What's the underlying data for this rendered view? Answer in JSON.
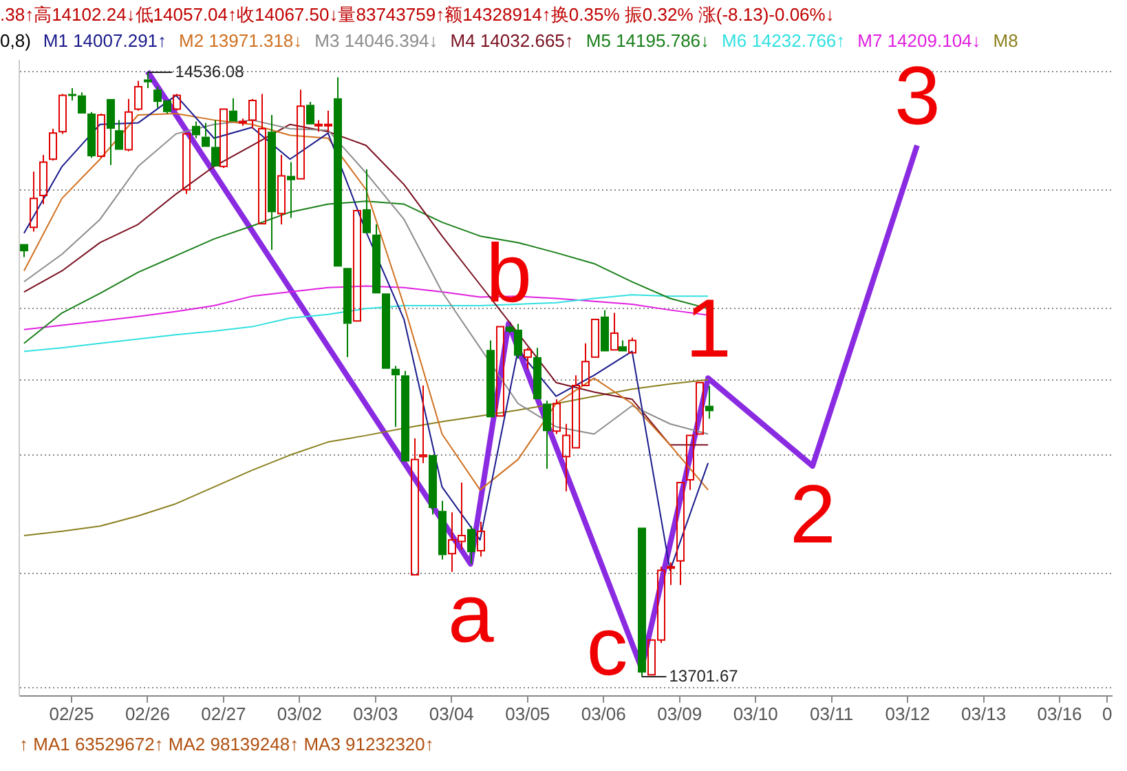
{
  "chart_data": {
    "type": "candlestick",
    "categories": [
      null,
      null,
      null,
      null,
      null,
      "02/25",
      null,
      null,
      null,
      null,
      null,
      null,
      null,
      "02/26",
      null,
      null,
      null,
      null,
      null,
      null,
      null,
      "02/27",
      null,
      null,
      null,
      null,
      null,
      null,
      null,
      "03/02",
      null,
      null,
      null,
      null,
      null,
      null,
      null,
      "03/03",
      null,
      null,
      null,
      null,
      null,
      null,
      null,
      "03/04",
      null,
      null,
      null,
      null,
      null,
      null,
      null,
      "03/05",
      null,
      null,
      null,
      null,
      null,
      null,
      null,
      "03/06",
      null,
      null,
      null,
      null,
      null,
      null,
      null,
      "03/09",
      null,
      null,
      null,
      null,
      null,
      null,
      null,
      "03/10",
      null,
      null,
      null,
      null,
      null,
      null,
      null,
      "03/11",
      null,
      null,
      null,
      null,
      null,
      null,
      null,
      "03/12",
      null,
      null,
      null,
      null,
      null,
      null,
      null,
      "03/13",
      null,
      null,
      null,
      null,
      null,
      null,
      null,
      "03/16",
      null,
      null,
      null,
      null,
      "0"
    ],
    "ohlc": [
      [
        14298,
        14298,
        14280,
        14288
      ],
      [
        14321,
        14398,
        14315,
        14361
      ],
      [
        14365,
        14421,
        14353,
        14411
      ],
      [
        14415,
        14457,
        14413,
        14451
      ],
      [
        14453,
        14505,
        14450,
        14503
      ],
      [
        14505,
        14513,
        14496,
        14503
      ],
      [
        14503,
        14507,
        14478,
        14478
      ],
      [
        14478,
        14480,
        14417,
        14419
      ],
      [
        14419,
        14478,
        14417,
        14476
      ],
      [
        14498,
        14498,
        14407,
        14457
      ],
      [
        14455,
        14469,
        14428,
        14428
      ],
      [
        14428,
        14498,
        14426,
        14480
      ],
      [
        14484,
        14523,
        14482,
        14515
      ],
      [
        14525,
        14536.08,
        14513,
        14521
      ],
      [
        14511,
        14515,
        14486,
        14494
      ],
      [
        14496,
        14496,
        14478,
        14480
      ],
      [
        14484,
        14505,
        14482,
        14503
      ],
      [
        14373,
        14451,
        14367,
        14450
      ],
      [
        14461,
        14467,
        14444,
        14448
      ],
      [
        14446,
        14465,
        14432,
        14432
      ],
      [
        14432,
        14469,
        14405,
        14405
      ],
      [
        14405,
        14484,
        14403,
        14484
      ],
      [
        14482,
        14499,
        14467,
        14467
      ],
      [
        14465,
        14471,
        14461,
        14467
      ],
      [
        14469,
        14498,
        14457,
        14496
      ],
      [
        14326,
        14505,
        14326,
        14457
      ],
      [
        14453,
        14476,
        14290,
        14342
      ],
      [
        14340,
        14421,
        14325,
        14392
      ],
      [
        14392,
        14411,
        14334,
        14386
      ],
      [
        14388,
        14511,
        14388,
        14488
      ],
      [
        14490,
        14494,
        14463,
        14463
      ],
      [
        14461,
        14469,
        14453,
        14463
      ],
      [
        14461,
        14482,
        14453,
        14463
      ],
      [
        14499,
        14528,
        14267,
        14267
      ],
      [
        14265,
        14265,
        14142,
        14188
      ],
      [
        14192,
        14344,
        14192,
        14344
      ],
      [
        14346,
        14401,
        14313,
        14313
      ],
      [
        14311,
        14325,
        14230,
        14230
      ],
      [
        14230,
        14230,
        14126,
        14126
      ],
      [
        14126,
        14130,
        14046,
        14117
      ],
      [
        14117,
        14123,
        13998,
        13998
      ],
      [
        13842,
        14030,
        13842,
        14001
      ],
      [
        14005,
        14103,
        13996,
        14007
      ],
      [
        14007,
        14007,
        13925,
        13934
      ],
      [
        13930,
        13944,
        13863,
        13869
      ],
      [
        13871,
        13928,
        13846,
        13890
      ],
      [
        13888,
        13969,
        13877,
        13896
      ],
      [
        13905,
        13909,
        13857,
        13873
      ],
      [
        13875,
        13915,
        13867,
        13902
      ],
      [
        14152,
        14165,
        14059,
        14059
      ],
      [
        14061,
        14184,
        14061,
        14184
      ],
      [
        14184,
        14186,
        14175,
        14177
      ],
      [
        14180,
        14188,
        14140,
        14144
      ],
      [
        14142,
        14155,
        14126,
        14152
      ],
      [
        14142,
        14155,
        14084,
        14084
      ],
      [
        14078,
        14082,
        13988,
        14040
      ],
      [
        14040,
        14084,
        14036,
        14078
      ],
      [
        14005,
        14050,
        13957,
        14034
      ],
      [
        14017,
        14117,
        14017,
        14103
      ],
      [
        14103,
        14161,
        14103,
        14136
      ],
      [
        14142,
        14194,
        14142,
        14194
      ],
      [
        14198,
        14207,
        14150,
        14150
      ],
      [
        14152,
        14203,
        14152,
        14175
      ],
      [
        14157,
        14165,
        14150,
        14150
      ],
      [
        14148,
        14169,
        14148,
        14165
      ],
      [
        13907,
        13907,
        13701.67,
        13707
      ],
      [
        13704,
        13752,
        13704,
        13752
      ],
      [
        13752,
        13853,
        13748,
        13848
      ],
      [
        13852,
        13859,
        13828,
        13853
      ],
      [
        13861,
        13969,
        13828,
        13969
      ],
      [
        13973,
        14034,
        13959,
        14034
      ],
      [
        14036,
        14107,
        14036,
        14107
      ],
      [
        14075,
        14102.24,
        14057.04,
        14067.5
      ],
      null,
      null,
      null,
      null,
      null,
      null,
      null,
      null,
      null,
      null,
      null,
      null,
      null,
      null,
      null,
      null,
      null,
      null,
      null,
      null,
      null,
      null,
      null,
      null,
      null,
      null,
      null,
      null,
      null,
      null,
      null,
      null,
      null,
      null,
      null,
      null,
      null,
      null,
      null,
      null,
      null,
      null
    ],
    "colors": [
      "#008000",
      "#e00000",
      "#e00000",
      "#e00000",
      "#e00000",
      "#008000",
      "#008000",
      "#008000",
      "#e00000",
      "#008000",
      "#008000",
      "#e00000",
      "#e00000",
      "#008000",
      "#008000",
      "#008000",
      "#e00000",
      "#e00000",
      "#008000",
      "#008000",
      "#008000",
      "#e00000",
      "#008000",
      "#e00000",
      "#e00000",
      "#e00000",
      "#008000",
      "#e00000",
      "#008000",
      "#e00000",
      "#008000",
      "#e00000",
      "#e00000",
      "#008000",
      "#008000",
      "#e00000",
      "#008000",
      "#008000",
      "#008000",
      "#008000",
      "#008000",
      "#e00000",
      "#e00000",
      "#008000",
      "#008000",
      "#e00000",
      "#e00000",
      "#008000",
      "#e00000",
      "#008000",
      "#e00000",
      "#008000",
      "#008000",
      "#e00000",
      "#008000",
      "#008000",
      "#e00000",
      "#e00000",
      "#e00000",
      "#e00000",
      "#e00000",
      "#008000",
      "#e00000",
      "#008000",
      "#e00000",
      "#008000",
      "#e00000",
      "#e00000",
      "#e00000",
      "#e00000",
      "#e00000",
      "#e00000",
      "#008000",
      null,
      null,
      null,
      null,
      null,
      null,
      null,
      null,
      null,
      null,
      null,
      null,
      null,
      null,
      null,
      null,
      null,
      null,
      null,
      null,
      null,
      null,
      null,
      null,
      null,
      null,
      null,
      null,
      null,
      null,
      null,
      null,
      null,
      null,
      null,
      null,
      null,
      null,
      null,
      null,
      null,
      null
    ],
    "series": [
      {
        "type": "line",
        "name": "M1 14007.291↑",
        "color": "#1a1a8c",
        "values": [
          14313,
          null,
          null,
          null,
          14405,
          null,
          null,
          null,
          14463,
          null,
          null,
          null,
          14465,
          null,
          null,
          null,
          14503,
          null,
          null,
          null,
          14444,
          null,
          null,
          null,
          14459,
          null,
          null,
          null,
          14415,
          null,
          null,
          null,
          14451,
          null,
          null,
          null,
          14315,
          null,
          null,
          null,
          14194,
          null,
          null,
          null,
          13963,
          null,
          null,
          null,
          13890,
          null,
          null,
          null,
          14152,
          null,
          null,
          null,
          14088,
          null,
          null,
          null,
          14117,
          null,
          null,
          null,
          14150,
          null,
          null,
          null,
          13848,
          null,
          null,
          null,
          13996,
          null,
          null,
          null,
          null,
          null,
          null,
          null,
          null,
          null,
          null,
          null,
          null,
          null,
          null,
          null,
          null,
          null,
          null,
          null,
          null,
          null,
          null,
          null,
          null,
          null,
          null,
          null,
          null,
          null,
          null,
          null,
          null,
          null,
          null,
          null,
          null,
          null,
          null,
          null,
          null,
          null,
          null
        ]
      },
      {
        "type": "line",
        "name": "M2 13971.318↓",
        "color": "#d07020",
        "values": [
          14261,
          null,
          null,
          null,
          14361,
          null,
          null,
          null,
          14415,
          null,
          null,
          null,
          14476,
          null,
          null,
          null,
          14478,
          null,
          null,
          null,
          14469,
          null,
          null,
          null,
          14463,
          null,
          null,
          null,
          14448,
          null,
          null,
          null,
          14444,
          null,
          null,
          null,
          14373,
          null,
          null,
          null,
          14213,
          null,
          null,
          null,
          14036,
          null,
          null,
          null,
          13959,
          null,
          null,
          null,
          14001,
          null,
          null,
          null,
          14078,
          null,
          null,
          null,
          14113,
          null,
          null,
          null,
          14078,
          null,
          null,
          null,
          14021,
          null,
          null,
          null,
          13959,
          null,
          null,
          null,
          null,
          null,
          null,
          null,
          null,
          null,
          null,
          null,
          null,
          null,
          null,
          null,
          null,
          null,
          null,
          null,
          null,
          null,
          null,
          null,
          null,
          null,
          null,
          null,
          null,
          null,
          null,
          null,
          null,
          null,
          null,
          null,
          null,
          null,
          null,
          null,
          null,
          null,
          null
        ]
      },
      {
        "type": "line",
        "name": "M3 14046.394↓",
        "color": "#8c8c8c",
        "values": [
          14246,
          null,
          null,
          null,
          14284,
          null,
          null,
          null,
          14332,
          null,
          null,
          null,
          14405,
          null,
          null,
          null,
          14450,
          null,
          null,
          null,
          14463,
          null,
          null,
          null,
          14469,
          null,
          null,
          null,
          14457,
          null,
          null,
          null,
          14455,
          null,
          null,
          null,
          14396,
          null,
          null,
          null,
          14332,
          null,
          null,
          null,
          14232,
          null,
          null,
          null,
          14155,
          null,
          null,
          null,
          14078,
          null,
          null,
          null,
          14046,
          null,
          null,
          null,
          14036,
          null,
          null,
          null,
          14075,
          null,
          null,
          null,
          14050,
          null,
          null,
          null,
          14036,
          null,
          null,
          null,
          null,
          null,
          null,
          null,
          null,
          null,
          null,
          null,
          null,
          null,
          null,
          null,
          null,
          null,
          null,
          null,
          null,
          null,
          null,
          null,
          null,
          null,
          null,
          null,
          null,
          null,
          null,
          null,
          null,
          null,
          null,
          null,
          null,
          null,
          null,
          null,
          null,
          null,
          null
        ]
      },
      {
        "type": "line",
        "name": "M4 14032.665↑",
        "color": "#7a1020",
        "values": [
          14232,
          null,
          null,
          null,
          14261,
          null,
          null,
          null,
          14300,
          null,
          null,
          null,
          14325,
          null,
          null,
          null,
          14367,
          null,
          null,
          null,
          14405,
          null,
          null,
          null,
          14434,
          null,
          null,
          null,
          14463,
          null,
          null,
          null,
          14453,
          null,
          null,
          null,
          14434,
          null,
          null,
          null,
          14380,
          null,
          null,
          null,
          14309,
          null,
          null,
          null,
          14242,
          null,
          null,
          null,
          14175,
          null,
          null,
          null,
          14107,
          null,
          null,
          null,
          14094,
          null,
          null,
          null,
          14084,
          null,
          null,
          null,
          14021,
          null,
          null,
          null,
          14021,
          null,
          null,
          null,
          null,
          null,
          null,
          null,
          null,
          null,
          null,
          null,
          null,
          null,
          null,
          null,
          null,
          null,
          null,
          null,
          null,
          null,
          null,
          null,
          null,
          null,
          null,
          null,
          null,
          null,
          null,
          null,
          null,
          null,
          null,
          null,
          null,
          null,
          null,
          null,
          null,
          null,
          null
        ]
      },
      {
        "type": "line",
        "name": "M5 14195.786↓",
        "color": "#1a801a",
        "values": [
          14161,
          null,
          null,
          null,
          14203,
          null,
          null,
          null,
          14230,
          null,
          null,
          null,
          14259,
          null,
          null,
          null,
          14282,
          null,
          null,
          null,
          14305,
          null,
          null,
          null,
          14323,
          null,
          null,
          null,
          14342,
          null,
          null,
          null,
          14353,
          null,
          null,
          null,
          14357,
          null,
          null,
          null,
          14353,
          null,
          null,
          null,
          14328,
          null,
          null,
          null,
          14309,
          null,
          null,
          null,
          14300,
          null,
          null,
          null,
          14286,
          null,
          null,
          null,
          14271,
          null,
          null,
          null,
          14246,
          null,
          null,
          null,
          14223,
          null,
          null,
          null,
          14209,
          null,
          null,
          null,
          null,
          null,
          null,
          null,
          null,
          null,
          null,
          null,
          null,
          null,
          null,
          null,
          null,
          null,
          null,
          null,
          null,
          null,
          null,
          null,
          null,
          null,
          null,
          null,
          null,
          null,
          null,
          null,
          null,
          null,
          null,
          null,
          null,
          null,
          null,
          null,
          null,
          null,
          null
        ]
      },
      {
        "type": "line",
        "name": "M6 14232.766↑",
        "color": "#33e0e0",
        "values": [
          14150,
          null,
          null,
          null,
          14155,
          null,
          null,
          null,
          14161,
          null,
          null,
          null,
          14167,
          null,
          null,
          null,
          14173,
          null,
          null,
          null,
          14178,
          null,
          null,
          null,
          14184,
          null,
          null,
          null,
          14196,
          null,
          null,
          null,
          14201,
          null,
          null,
          null,
          14209,
          null,
          null,
          null,
          14213,
          null,
          null,
          null,
          14213,
          null,
          null,
          null,
          14213,
          null,
          null,
          null,
          14215,
          null,
          null,
          null,
          14217,
          null,
          null,
          null,
          14223,
          null,
          null,
          null,
          14228,
          null,
          null,
          null,
          14226,
          null,
          null,
          null,
          14226,
          null,
          null,
          null,
          null,
          null,
          null,
          null,
          null,
          null,
          null,
          null,
          null,
          null,
          null,
          null,
          null,
          null,
          null,
          null,
          null,
          null,
          null,
          null,
          null,
          null,
          null,
          null,
          null,
          null,
          null,
          null,
          null,
          null,
          null,
          null,
          null,
          null,
          null,
          null,
          null,
          null,
          null
        ]
      },
      {
        "type": "line",
        "name": "M7 14209.104↓",
        "color": "#e020e0",
        "values": [
          14180,
          null,
          null,
          null,
          14186,
          null,
          null,
          null,
          14192,
          null,
          null,
          null,
          14198,
          null,
          null,
          null,
          14205,
          null,
          null,
          null,
          14213,
          null,
          null,
          null,
          14226,
          null,
          null,
          null,
          14232,
          null,
          null,
          null,
          14238,
          null,
          null,
          null,
          14240,
          null,
          null,
          null,
          14238,
          null,
          null,
          null,
          14232,
          null,
          null,
          null,
          14225,
          null,
          null,
          null,
          14226,
          null,
          null,
          null,
          14223,
          null,
          null,
          null,
          14219,
          null,
          null,
          null,
          14215,
          null,
          null,
          null,
          14207,
          null,
          null,
          null,
          14200,
          null,
          null,
          null,
          null,
          null,
          null,
          null,
          null,
          null,
          null,
          null,
          null,
          null,
          null,
          null,
          null,
          null,
          null,
          null,
          null,
          null,
          null,
          null,
          null,
          null,
          null,
          null,
          null,
          null,
          null,
          null,
          null,
          null,
          null,
          null,
          null,
          null,
          null,
          null,
          null,
          null,
          null
        ]
      },
      {
        "type": "line",
        "name": "M8",
        "color": "#8c8020",
        "values": [
          13896,
          null,
          null,
          null,
          13902,
          null,
          null,
          null,
          13909,
          null,
          null,
          null,
          13923,
          null,
          null,
          null,
          13940,
          null,
          null,
          null,
          13963,
          null,
          null,
          null,
          13986,
          null,
          null,
          null,
          14007,
          null,
          null,
          null,
          14025,
          null,
          null,
          null,
          14034,
          null,
          null,
          null,
          14044,
          null,
          null,
          null,
          14053,
          null,
          null,
          null,
          14061,
          null,
          null,
          null,
          14069,
          null,
          null,
          null,
          14078,
          null,
          null,
          null,
          14088,
          null,
          null,
          null,
          14098,
          null,
          null,
          null,
          14105,
          null,
          null,
          null,
          14111,
          null,
          null,
          null,
          null,
          null,
          null,
          null,
          null,
          null,
          null,
          null,
          null,
          null,
          null,
          null,
          null,
          null,
          null,
          null,
          null,
          null,
          null,
          null,
          null,
          null,
          null,
          null,
          null,
          null,
          null,
          null,
          null,
          null,
          null,
          null,
          null,
          null,
          null,
          null,
          null,
          null,
          null
        ]
      },
      {
        "type": "line",
        "color": "#8a2be2",
        "values": [
          null,
          null,
          null,
          null,
          null,
          null,
          null,
          null,
          null,
          null,
          null,
          null,
          null,
          14536,
          null,
          null,
          null,
          null,
          null,
          null,
          null,
          null,
          null,
          null,
          null,
          null,
          null,
          null,
          null,
          null,
          null,
          null,
          null,
          null,
          null,
          null,
          null,
          null,
          null,
          null,
          null,
          null,
          null,
          null,
          null,
          null,
          null,
          13857,
          null,
          null,
          null,
          14188,
          null,
          null,
          null,
          null,
          null,
          null,
          null,
          null,
          null,
          null,
          null,
          null,
          null,
          13713,
          null,
          null,
          null,
          null,
          null,
          null,
          14113,
          null,
          null,
          null,
          null,
          null,
          null,
          null,
          null,
          null,
          null,
          13992,
          null,
          null,
          null,
          null,
          null,
          null,
          null,
          null,
          null,
          null,
          14434,
          null,
          null,
          null,
          null,
          null,
          null,
          null,
          null,
          null,
          null,
          null,
          null,
          null,
          null,
          null,
          null,
          null,
          null,
          null,
          null
        ]
      }
    ],
    "ylim": [
      13675,
      14551
    ],
    "yticks": [
      {
        "value": 14536,
        "label": null
      },
      {
        "value": 14373,
        "label": null
      },
      {
        "value": 14209,
        "label": null
      },
      {
        "value": 14111,
        "label": null
      },
      {
        "value": 14007,
        "label": null
      },
      {
        "value": 13844,
        "label": null
      },
      {
        "value": 13686,
        "label": null
      }
    ],
    "tick_labels": "x",
    "grid": "y",
    "legend": "top left",
    "marker": "none",
    "annotations": [
      ".38↑高14102.24↓低14057.04↑收14067.50↓量83743759↑额14328914↑换0.35% 振0.32% 涨(-8.13)-0.06%↓",
      "0,8)",
      "↑ MA1 63529672↑ MA2 98139248↑ MA3 91232320↑",
      "14536.08",
      "13701.67",
      "a",
      "b",
      "c",
      "1",
      "2",
      "3"
    ]
  }
}
